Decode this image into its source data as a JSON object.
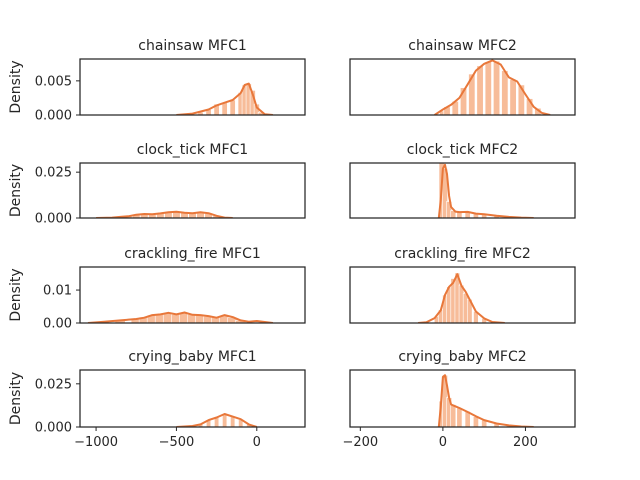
{
  "chart_data": [
    {
      "type": "area",
      "title": "chainsaw MFC1",
      "ylabel": "Density",
      "yticks": [
        0,
        0.005
      ],
      "ytick_labels": [
        "0.000",
        "0.005"
      ],
      "ylim": [
        0,
        0.0082
      ],
      "xlim": [
        -1100,
        300
      ],
      "x": [
        -500,
        -400,
        -300,
        -250,
        -200,
        -150,
        -100,
        -75,
        -50,
        -25,
        0,
        50,
        100
      ],
      "y": [
        0.0,
        0.0002,
        0.0008,
        0.0014,
        0.0018,
        0.0022,
        0.0032,
        0.0044,
        0.0046,
        0.003,
        0.0011,
        0.0001,
        0.0
      ],
      "bins": [
        [
          -450,
          0.0001
        ],
        [
          -350,
          0.0004
        ],
        [
          -300,
          0.0008
        ],
        [
          -250,
          0.0016
        ],
        [
          -200,
          0.0018
        ],
        [
          -150,
          0.0022
        ],
        [
          -100,
          0.0033
        ],
        [
          -75,
          0.0044
        ],
        [
          -50,
          0.0046
        ],
        [
          -25,
          0.0036
        ],
        [
          0,
          0.0016
        ],
        [
          25,
          0.0004
        ]
      ]
    },
    {
      "type": "area",
      "title": "chainsaw MFC2",
      "ylabel": "",
      "yticks": [],
      "ytick_labels": [],
      "ylim": [
        0,
        0.0082
      ],
      "xlim": [
        -225,
        320
      ],
      "x": [
        -20,
        0,
        20,
        40,
        60,
        80,
        100,
        120,
        140,
        160,
        180,
        200,
        220,
        240,
        260
      ],
      "y": [
        0.0,
        0.0008,
        0.0015,
        0.0025,
        0.0045,
        0.0065,
        0.0075,
        0.008,
        0.0074,
        0.0055,
        0.0049,
        0.003,
        0.0012,
        0.0003,
        0.0
      ],
      "bins": [
        [
          0,
          0.0006
        ],
        [
          10,
          0.0012
        ],
        [
          30,
          0.002
        ],
        [
          50,
          0.004
        ],
        [
          70,
          0.006
        ],
        [
          90,
          0.0072
        ],
        [
          110,
          0.0078
        ],
        [
          130,
          0.0079
        ],
        [
          150,
          0.0065
        ],
        [
          170,
          0.0052
        ],
        [
          190,
          0.0044
        ],
        [
          210,
          0.0024
        ],
        [
          230,
          0.001
        ]
      ]
    },
    {
      "type": "area",
      "title": "clock_tick MFC1",
      "ylabel": "Density",
      "yticks": [
        0,
        0.025
      ],
      "ytick_labels": [
        "0.000",
        "0.025"
      ],
      "ylim": [
        0,
        0.03
      ],
      "xlim": [
        -1100,
        300
      ],
      "x": [
        -1000,
        -900,
        -850,
        -800,
        -750,
        -700,
        -650,
        -600,
        -550,
        -500,
        -450,
        -400,
        -350,
        -300,
        -250,
        -200,
        -150
      ],
      "y": [
        0.0,
        0.0002,
        0.0006,
        0.0009,
        0.0018,
        0.0022,
        0.002,
        0.0025,
        0.0031,
        0.0034,
        0.0029,
        0.0026,
        0.0031,
        0.0026,
        0.0012,
        0.0002,
        0.0
      ],
      "bins": [
        [
          -900,
          0.0004
        ],
        [
          -800,
          0.001
        ],
        [
          -750,
          0.0018
        ],
        [
          -700,
          0.0022
        ],
        [
          -650,
          0.002
        ],
        [
          -600,
          0.0026
        ],
        [
          -550,
          0.0032
        ],
        [
          -500,
          0.0034
        ],
        [
          -450,
          0.003
        ],
        [
          -400,
          0.0026
        ],
        [
          -350,
          0.003
        ],
        [
          -300,
          0.0025
        ],
        [
          -250,
          0.0012
        ]
      ]
    },
    {
      "type": "area",
      "title": "clock_tick MFC2",
      "ylabel": "",
      "yticks": [],
      "ytick_labels": [],
      "ylim": [
        0,
        0.03
      ],
      "xlim": [
        -225,
        320
      ],
      "x": [
        -10,
        -5,
        0,
        5,
        10,
        15,
        20,
        30,
        40,
        60,
        80,
        100,
        130,
        160,
        190,
        220
      ],
      "y": [
        0.0,
        0.01,
        0.027,
        0.029,
        0.024,
        0.012,
        0.006,
        0.0035,
        0.0032,
        0.0033,
        0.0024,
        0.0021,
        0.0012,
        0.0006,
        0.0002,
        0.0
      ],
      "bins": [
        [
          -3,
          0.03
        ],
        [
          5,
          0.027
        ],
        [
          15,
          0.009
        ],
        [
          25,
          0.004
        ],
        [
          40,
          0.0032
        ],
        [
          60,
          0.0033
        ],
        [
          80,
          0.0025
        ],
        [
          100,
          0.002
        ],
        [
          130,
          0.0012
        ],
        [
          160,
          0.0006
        ]
      ]
    },
    {
      "type": "area",
      "title": "crackling_fire MFC1",
      "ylabel": "Density",
      "yticks": [
        0,
        0.01
      ],
      "ytick_labels": [
        "0.00",
        "0.01"
      ],
      "ylim": [
        0,
        0.017
      ],
      "xlim": [
        -1100,
        300
      ],
      "x": [
        -1050,
        -950,
        -850,
        -750,
        -700,
        -650,
        -600,
        -550,
        -500,
        -450,
        -400,
        -350,
        -300,
        -250,
        -200,
        -150,
        -100,
        -50,
        0,
        50,
        100
      ],
      "y": [
        0.0,
        0.0004,
        0.0008,
        0.0012,
        0.0016,
        0.0024,
        0.0026,
        0.0031,
        0.0026,
        0.0032,
        0.0025,
        0.0024,
        0.0021,
        0.0016,
        0.0024,
        0.0018,
        0.0008,
        0.0004,
        0.0006,
        0.0003,
        0.0
      ],
      "bins": [
        [
          -950,
          0.0004
        ],
        [
          -850,
          0.0008
        ],
        [
          -750,
          0.0012
        ],
        [
          -700,
          0.0018
        ],
        [
          -650,
          0.0024
        ],
        [
          -600,
          0.0028
        ],
        [
          -550,
          0.003
        ],
        [
          -500,
          0.0026
        ],
        [
          -450,
          0.003
        ],
        [
          -400,
          0.0026
        ],
        [
          -350,
          0.0024
        ],
        [
          -300,
          0.002
        ],
        [
          -250,
          0.0018
        ],
        [
          -200,
          0.0022
        ],
        [
          -150,
          0.0016
        ],
        [
          -100,
          0.0008
        ]
      ]
    },
    {
      "type": "area",
      "title": "crackling_fire MFC2",
      "ylabel": "",
      "yticks": [],
      "ytick_labels": [],
      "ylim": [
        0,
        0.017
      ],
      "xlim": [
        -225,
        320
      ],
      "x": [
        -60,
        -40,
        -20,
        -5,
        5,
        15,
        25,
        35,
        45,
        55,
        65,
        80,
        100,
        120,
        150
      ],
      "y": [
        0.0,
        0.0002,
        0.0015,
        0.0039,
        0.0085,
        0.011,
        0.0122,
        0.0148,
        0.0113,
        0.0095,
        0.0071,
        0.0035,
        0.0014,
        0.0003,
        0.0
      ],
      "bins": [
        [
          -15,
          0.002
        ],
        [
          -5,
          0.004
        ],
        [
          5,
          0.0085
        ],
        [
          15,
          0.011
        ],
        [
          25,
          0.0135
        ],
        [
          35,
          0.0152
        ],
        [
          45,
          0.0115
        ],
        [
          55,
          0.009
        ],
        [
          65,
          0.0072
        ],
        [
          80,
          0.0035
        ],
        [
          100,
          0.0014
        ]
      ]
    },
    {
      "type": "area",
      "title": "crying_baby MFC1",
      "ylabel": "Density",
      "yticks": [
        0,
        0.025
      ],
      "ytick_labels": [
        "0.000",
        "0.025"
      ],
      "ylim": [
        0,
        0.033
      ],
      "xlim": [
        -1100,
        300
      ],
      "x": [
        -500,
        -400,
        -350,
        -300,
        -250,
        -200,
        -150,
        -100,
        -50,
        0
      ],
      "y": [
        0.0,
        0.0006,
        0.0015,
        0.004,
        0.0055,
        0.0075,
        0.006,
        0.0045,
        0.0015,
        0.0
      ],
      "bins": [
        [
          -400,
          0.0008
        ],
        [
          -350,
          0.0016
        ],
        [
          -300,
          0.004
        ],
        [
          -250,
          0.0058
        ],
        [
          -200,
          0.0075
        ],
        [
          -150,
          0.0062
        ],
        [
          -100,
          0.0042
        ],
        [
          -50,
          0.0015
        ]
      ]
    },
    {
      "type": "area",
      "title": "crying_baby MFC2",
      "ylabel": "",
      "yticks": [],
      "ytick_labels": [],
      "ylim": [
        0,
        0.033
      ],
      "xlim": [
        -225,
        320
      ],
      "x": [
        -10,
        -5,
        0,
        5,
        10,
        15,
        20,
        30,
        40,
        60,
        80,
        100,
        130,
        160,
        190,
        220
      ],
      "y": [
        0.0,
        0.012,
        0.029,
        0.03,
        0.024,
        0.017,
        0.013,
        0.012,
        0.011,
        0.0087,
        0.0062,
        0.004,
        0.002,
        0.0009,
        0.0003,
        0.0
      ],
      "bins": [
        [
          -3,
          0.015
        ],
        [
          5,
          0.03
        ],
        [
          15,
          0.017
        ],
        [
          25,
          0.013
        ],
        [
          40,
          0.011
        ],
        [
          60,
          0.009
        ],
        [
          80,
          0.006
        ],
        [
          100,
          0.004
        ],
        [
          130,
          0.002
        ],
        [
          160,
          0.0008
        ]
      ]
    }
  ],
  "x_axes": {
    "left": {
      "ticks": [
        -1000,
        -500,
        0
      ],
      "labels": [
        "−1000",
        "−500",
        "0"
      ]
    },
    "right": {
      "ticks": [
        -200,
        0,
        200
      ],
      "labels": [
        "−200",
        "0",
        "200"
      ]
    }
  },
  "colors": {
    "line": "#e8773a",
    "fill": "#f7bc99",
    "axes": "#262626",
    "bin_edge": "#ffffff"
  }
}
